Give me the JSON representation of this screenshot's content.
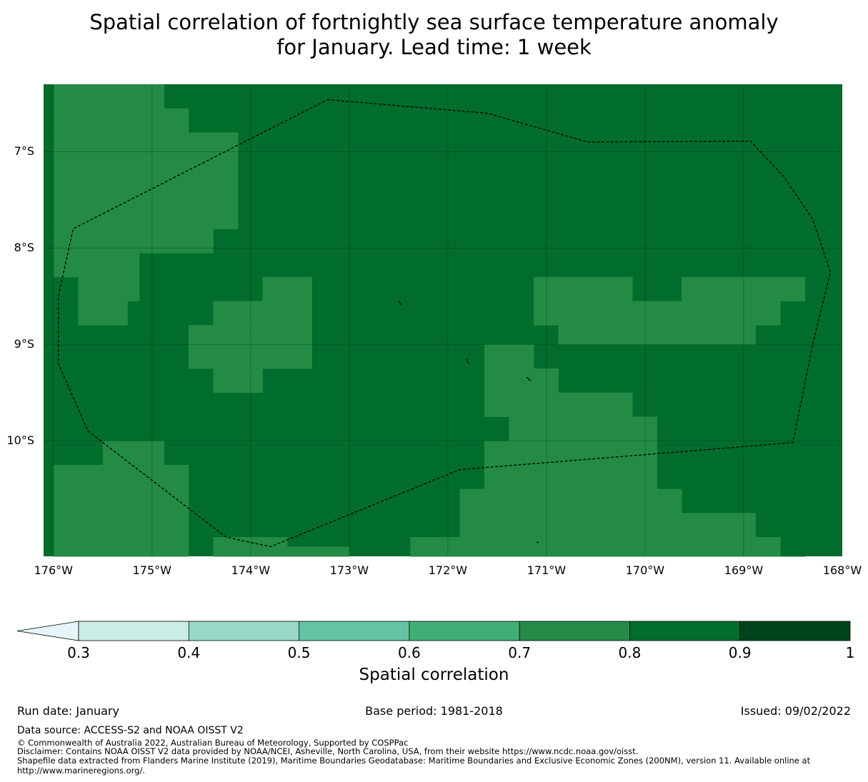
{
  "title": {
    "line1": "Spatial correlation of fortnightly sea surface temperature anomaly",
    "line2": "for January. Lead time: 1 week"
  },
  "map": {
    "extent": {
      "lon_min": -176.1,
      "lon_max": -168.0,
      "lat_min": -11.2,
      "lat_max": -6.3
    },
    "lat_ticks": [
      {
        "value": -7,
        "label": "7°S"
      },
      {
        "value": -8,
        "label": "8°S"
      },
      {
        "value": -9,
        "label": "9°S"
      },
      {
        "value": -10,
        "label": "10°S"
      }
    ],
    "lon_ticks": [
      {
        "value": -176,
        "label": "176°W"
      },
      {
        "value": -175,
        "label": "175°W"
      },
      {
        "value": -174,
        "label": "174°W"
      },
      {
        "value": -173,
        "label": "173°W"
      },
      {
        "value": -172,
        "label": "172°W"
      },
      {
        "value": -171,
        "label": "171°W"
      },
      {
        "value": -170,
        "label": "170°W"
      },
      {
        "value": -169,
        "label": "169°W"
      },
      {
        "value": -168,
        "label": "168°W"
      }
    ],
    "gridlines": true,
    "background_class": "0.8-0.9",
    "class_colors": {
      "0.7-0.8": "#238b45",
      "0.8-0.9": "#006d2c"
    },
    "regions_0_7_0_8": [
      {
        "lon": [
          -176.0,
          -174.88
        ],
        "lat": [
          -6.3,
          -6.55
        ]
      },
      {
        "lon": [
          -176.0,
          -174.63
        ],
        "lat": [
          -6.55,
          -6.8
        ]
      },
      {
        "lon": [
          -176.0,
          -174.13
        ],
        "lat": [
          -6.8,
          -7.8
        ]
      },
      {
        "lon": [
          -176.0,
          -174.38
        ],
        "lat": [
          -7.8,
          -8.05
        ]
      },
      {
        "lon": [
          -176.0,
          -175.13
        ],
        "lat": [
          -8.05,
          -8.3
        ]
      },
      {
        "lon": [
          -175.75,
          -175.13
        ],
        "lat": [
          -8.3,
          -8.55
        ]
      },
      {
        "lon": [
          -175.75,
          -175.25
        ],
        "lat": [
          -8.55,
          -8.8
        ]
      },
      {
        "lon": [
          -173.88,
          -173.38
        ],
        "lat": [
          -8.3,
          -8.55
        ]
      },
      {
        "lon": [
          -174.38,
          -173.38
        ],
        "lat": [
          -8.55,
          -8.8
        ]
      },
      {
        "lon": [
          -174.63,
          -173.38
        ],
        "lat": [
          -8.8,
          -9.25
        ]
      },
      {
        "lon": [
          -174.38,
          -173.88
        ],
        "lat": [
          -9.25,
          -9.5
        ]
      },
      {
        "lon": [
          -171.13,
          -170.13
        ],
        "lat": [
          -8.3,
          -8.55
        ]
      },
      {
        "lon": [
          -169.63,
          -168.38
        ],
        "lat": [
          -8.3,
          -8.55
        ]
      },
      {
        "lon": [
          -171.13,
          -168.63
        ],
        "lat": [
          -8.55,
          -8.8
        ]
      },
      {
        "lon": [
          -170.88,
          -168.88
        ],
        "lat": [
          -8.8,
          -9.0
        ]
      },
      {
        "lon": [
          -171.63,
          -171.13
        ],
        "lat": [
          -9.0,
          -9.25
        ]
      },
      {
        "lon": [
          -171.63,
          -170.88
        ],
        "lat": [
          -9.25,
          -9.5
        ]
      },
      {
        "lon": [
          -171.63,
          -170.13
        ],
        "lat": [
          -9.5,
          -9.75
        ]
      },
      {
        "lon": [
          -171.38,
          -169.88
        ],
        "lat": [
          -9.75,
          -10.0
        ]
      },
      {
        "lon": [
          -171.63,
          -169.88
        ],
        "lat": [
          -10.0,
          -10.5
        ]
      },
      {
        "lon": [
          -171.88,
          -169.63
        ],
        "lat": [
          -10.5,
          -10.75
        ]
      },
      {
        "lon": [
          -171.88,
          -168.88
        ],
        "lat": [
          -10.75,
          -11.0
        ]
      },
      {
        "lon": [
          -172.38,
          -168.63
        ],
        "lat": [
          -11.0,
          -11.25
        ]
      },
      {
        "lon": [
          -168.63,
          -168.38
        ],
        "lat": [
          -11.25,
          -11.2
        ]
      },
      {
        "lon": [
          -175.5,
          -174.88
        ],
        "lat": [
          -10.0,
          -10.25
        ]
      },
      {
        "lon": [
          -176.0,
          -174.63
        ],
        "lat": [
          -10.25,
          -11.2
        ]
      },
      {
        "lon": [
          -174.38,
          -173.63
        ],
        "lat": [
          -11.0,
          -11.2
        ]
      },
      {
        "lon": [
          -173.63,
          -173.0
        ],
        "lat": [
          -11.1,
          -11.2
        ]
      },
      {
        "lon": [
          -171.63,
          -171.13
        ],
        "lat": [
          -11.1,
          -11.2
        ]
      }
    ],
    "eez_boundary": [
      [
        -173.22,
        -6.46
      ],
      [
        -171.6,
        -6.6
      ],
      [
        -170.58,
        -6.9
      ],
      [
        -168.93,
        -6.89
      ],
      [
        -168.6,
        -7.25
      ],
      [
        -168.3,
        -7.7
      ],
      [
        -168.12,
        -8.25
      ],
      [
        -168.3,
        -9.0
      ],
      [
        -168.5,
        -10.02
      ],
      [
        -171.88,
        -10.3
      ],
      [
        -173.8,
        -11.1
      ],
      [
        -174.25,
        -11.0
      ],
      [
        -175.65,
        -9.9
      ],
      [
        -175.95,
        -9.2
      ],
      [
        -175.95,
        -8.5
      ],
      [
        -175.8,
        -7.8
      ],
      [
        -173.22,
        -6.46
      ]
    ],
    "islands": [
      [
        [
          -172.5,
          -8.55
        ],
        [
          -172.47,
          -8.59
        ]
      ],
      [
        [
          -171.81,
          -9.15
        ],
        [
          -171.79,
          -9.2
        ]
      ],
      [
        [
          -171.2,
          -9.34
        ],
        [
          -171.16,
          -9.38
        ]
      ],
      [
        [
          -171.1,
          -11.05
        ],
        [
          -171.08,
          -11.06
        ]
      ]
    ]
  },
  "colorbar": {
    "label": "Spatial correlation",
    "boundaries": [
      0.3,
      0.4,
      0.5,
      0.6,
      0.7,
      0.8,
      0.9,
      1
    ],
    "tick_labels": [
      "0.3",
      "0.4",
      "0.5",
      "0.6",
      "0.7",
      "0.8",
      "0.9",
      "1"
    ],
    "colors": [
      "#ccece6",
      "#99d8c9",
      "#66c2a4",
      "#41ae76",
      "#238b45",
      "#006d2c",
      "#00441b"
    ],
    "extend_low_color": "#e5f5f9",
    "extend": "min"
  },
  "footer": {
    "run_date": "Run date: January",
    "base_period": "Base period: 1981-2018",
    "issued": "Issued: 09/02/2022",
    "data_source": "Data source: ACCESS-S2 and NOAA OISST V2",
    "copyright": "© Commonwealth of Australia 2022, Australian Bureau of Meteorology, Supported by COSPPac",
    "disclaimer": "Disclaimer: Contains NOAA OISST V2 data provided by NOAA/NCEI, Asheville, North Carolina, USA, from their website https://www.ncdc.noaa.gov/oisst.",
    "shapefile_line1": "Shapefile data extracted from Flanders Marine Institute (2019), Maritime Boundaries Geodatabase: Maritime Boundaries and Exclusive Economic Zones (200NM), version 11. Available online at",
    "shapefile_line2": "http://www.marineregions.org/."
  }
}
